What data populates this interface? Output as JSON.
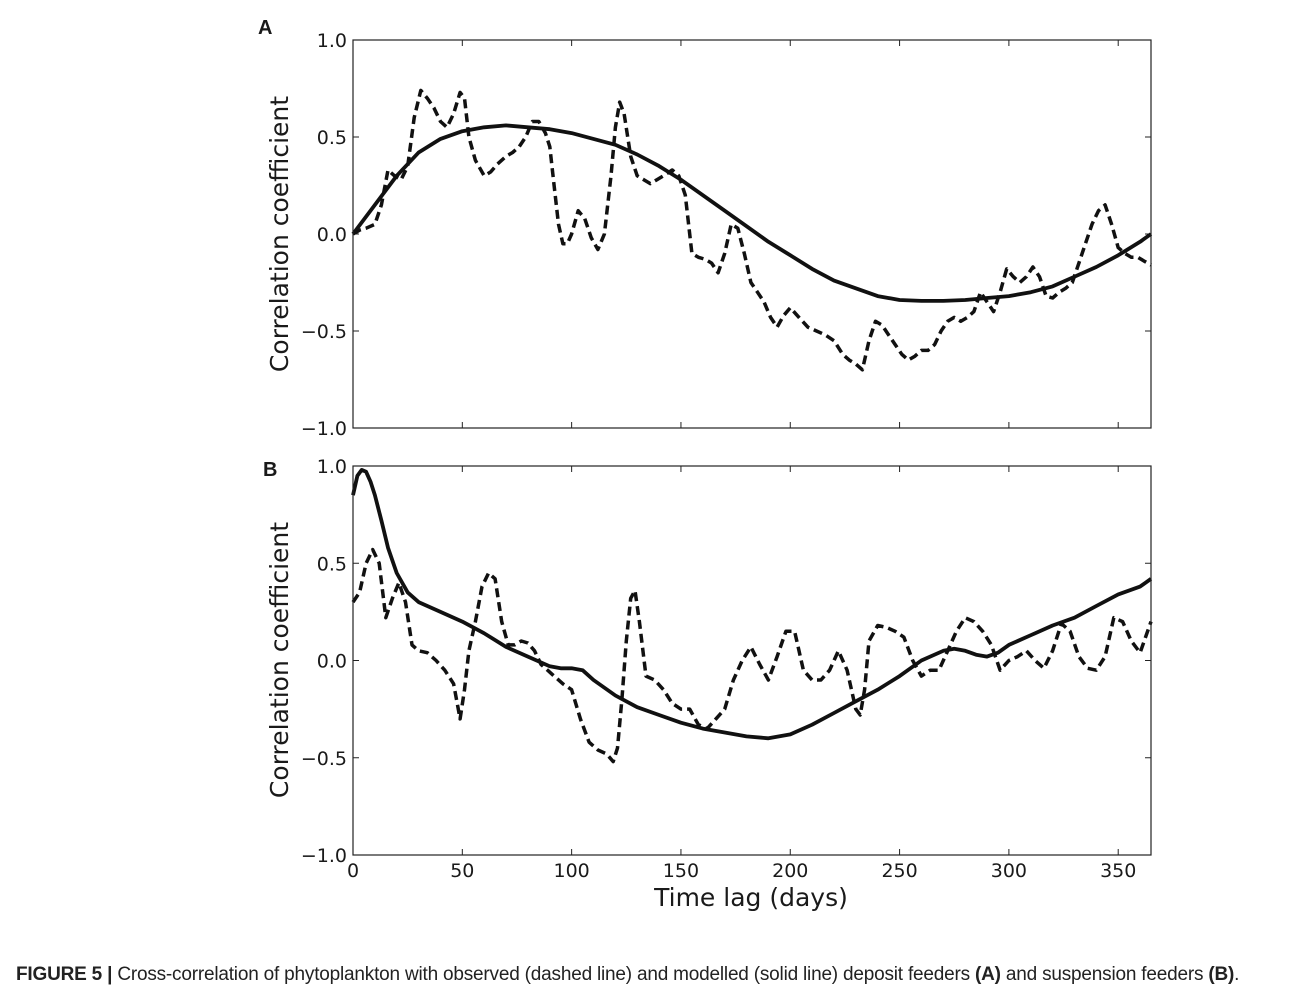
{
  "chart_data": [
    {
      "type": "line",
      "panel_label": "A",
      "ylabel": "Correlation coefficient",
      "xlabel": "",
      "xlim": [
        0,
        365
      ],
      "ylim": [
        -1.0,
        1.0
      ],
      "x_ticks": [
        0,
        50,
        100,
        150,
        200,
        250,
        300,
        350
      ],
      "y_ticks": [
        1.0,
        0.5,
        0.0,
        -0.5,
        -1.0
      ],
      "y_tick_labels": [
        "1.0",
        "0.5",
        "0.0",
        "−0.5",
        "−1.0"
      ],
      "show_x_tick_labels": false,
      "grid": false,
      "series": [
        {
          "style": "dashed",
          "x": [
            0,
            3,
            6,
            10,
            13,
            16,
            19,
            22,
            25,
            28,
            31,
            34,
            37,
            40,
            43,
            46,
            49,
            51,
            53,
            56,
            60,
            63,
            66,
            70,
            73,
            76,
            79,
            82,
            85,
            88,
            90,
            92,
            94,
            96,
            98,
            100,
            103,
            106,
            109,
            112,
            115,
            118,
            120,
            122,
            124,
            127,
            130,
            133,
            136,
            139,
            142,
            146,
            149,
            152,
            155,
            158,
            161,
            164,
            167,
            170,
            173,
            176,
            179,
            182,
            185,
            188,
            191,
            194,
            197,
            200,
            204,
            208,
            212,
            216,
            220,
            224,
            227,
            230,
            233,
            236,
            239,
            242,
            245,
            248,
            251,
            254,
            257,
            260,
            263,
            266,
            269,
            272,
            275,
            278,
            281,
            284,
            287,
            290,
            293,
            296,
            299,
            302,
            305,
            308,
            311,
            314,
            317,
            320,
            323,
            326,
            329,
            332,
            335,
            338,
            341,
            344,
            347,
            350,
            353,
            356,
            359,
            362,
            365
          ],
          "y": [
            0.0,
            0.02,
            0.03,
            0.05,
            0.15,
            0.33,
            0.3,
            0.28,
            0.35,
            0.6,
            0.74,
            0.7,
            0.65,
            0.58,
            0.55,
            0.62,
            0.73,
            0.7,
            0.5,
            0.38,
            0.3,
            0.32,
            0.36,
            0.4,
            0.42,
            0.45,
            0.5,
            0.58,
            0.58,
            0.52,
            0.45,
            0.25,
            0.05,
            -0.05,
            -0.05,
            0.0,
            0.12,
            0.08,
            -0.02,
            -0.08,
            0.0,
            0.3,
            0.55,
            0.68,
            0.62,
            0.4,
            0.3,
            0.28,
            0.26,
            0.28,
            0.3,
            0.33,
            0.3,
            0.2,
            -0.1,
            -0.12,
            -0.13,
            -0.15,
            -0.2,
            -0.1,
            0.05,
            0.03,
            -0.1,
            -0.25,
            -0.3,
            -0.35,
            -0.43,
            -0.48,
            -0.42,
            -0.38,
            -0.43,
            -0.48,
            -0.5,
            -0.52,
            -0.55,
            -0.62,
            -0.65,
            -0.67,
            -0.7,
            -0.55,
            -0.45,
            -0.47,
            -0.52,
            -0.57,
            -0.62,
            -0.65,
            -0.63,
            -0.6,
            -0.6,
            -0.57,
            -0.5,
            -0.45,
            -0.43,
            -0.45,
            -0.43,
            -0.4,
            -0.3,
            -0.35,
            -0.4,
            -0.3,
            -0.18,
            -0.22,
            -0.25,
            -0.22,
            -0.17,
            -0.22,
            -0.32,
            -0.33,
            -0.3,
            -0.28,
            -0.25,
            -0.15,
            -0.05,
            0.05,
            0.12,
            0.15,
            0.05,
            -0.07,
            -0.1,
            -0.12,
            -0.12,
            -0.14,
            -0.16
          ]
        },
        {
          "style": "solid",
          "x": [
            0,
            10,
            20,
            30,
            40,
            50,
            60,
            70,
            80,
            90,
            100,
            110,
            120,
            130,
            140,
            150,
            160,
            170,
            180,
            190,
            200,
            210,
            220,
            230,
            240,
            250,
            260,
            270,
            280,
            290,
            300,
            310,
            320,
            330,
            340,
            350,
            360,
            365
          ],
          "y": [
            0.0,
            0.15,
            0.3,
            0.42,
            0.49,
            0.53,
            0.55,
            0.56,
            0.55,
            0.54,
            0.52,
            0.49,
            0.46,
            0.41,
            0.35,
            0.28,
            0.2,
            0.12,
            0.04,
            -0.04,
            -0.11,
            -0.18,
            -0.24,
            -0.28,
            -0.32,
            -0.34,
            -0.345,
            -0.345,
            -0.34,
            -0.33,
            -0.32,
            -0.3,
            -0.27,
            -0.22,
            -0.17,
            -0.11,
            -0.04,
            0.0
          ]
        }
      ]
    },
    {
      "type": "line",
      "panel_label": "B",
      "ylabel": "Correlation coefficient",
      "xlabel": "Time lag (days)",
      "xlim": [
        0,
        365
      ],
      "ylim": [
        -1.0,
        1.0
      ],
      "x_ticks": [
        0,
        50,
        100,
        150,
        200,
        250,
        300,
        350
      ],
      "x_tick_labels": [
        "0",
        "50",
        "100",
        "150",
        "200",
        "250",
        "300",
        "350"
      ],
      "y_ticks": [
        1.0,
        0.5,
        0.0,
        -0.5,
        -1.0
      ],
      "y_tick_labels": [
        "1.0",
        "0.5",
        "0.0",
        "−0.5",
        "−1.0"
      ],
      "show_x_tick_labels": true,
      "grid": false,
      "series": [
        {
          "style": "dashed",
          "x": [
            0,
            3,
            6,
            9,
            12,
            15,
            18,
            21,
            24,
            27,
            30,
            34,
            38,
            42,
            46,
            49,
            51,
            53,
            56,
            59,
            62,
            65,
            68,
            71,
            74,
            77,
            80,
            83,
            86,
            89,
            92,
            96,
            100,
            104,
            108,
            112,
            116,
            119,
            121,
            123,
            125,
            127,
            129,
            131,
            134,
            138,
            142,
            146,
            150,
            154,
            158,
            162,
            166,
            170,
            174,
            178,
            182,
            186,
            190,
            194,
            198,
            202,
            206,
            210,
            214,
            218,
            222,
            226,
            230,
            232,
            234,
            236,
            240,
            244,
            248,
            252,
            256,
            260,
            264,
            268,
            272,
            276,
            280,
            284,
            288,
            292,
            296,
            300,
            304,
            308,
            312,
            316,
            320,
            324,
            328,
            332,
            336,
            340,
            344,
            348,
            352,
            356,
            360,
            365
          ],
          "y": [
            0.3,
            0.35,
            0.5,
            0.57,
            0.5,
            0.22,
            0.32,
            0.4,
            0.3,
            0.08,
            0.05,
            0.04,
            0.0,
            -0.05,
            -0.12,
            -0.3,
            -0.15,
            0.05,
            0.2,
            0.38,
            0.45,
            0.42,
            0.2,
            0.08,
            0.08,
            0.1,
            0.09,
            0.05,
            -0.02,
            -0.05,
            -0.08,
            -0.12,
            -0.15,
            -0.3,
            -0.42,
            -0.46,
            -0.48,
            -0.52,
            -0.45,
            -0.2,
            0.1,
            0.32,
            0.36,
            0.2,
            -0.08,
            -0.1,
            -0.15,
            -0.22,
            -0.25,
            -0.25,
            -0.33,
            -0.35,
            -0.3,
            -0.25,
            -0.1,
            0.0,
            0.07,
            -0.02,
            -0.1,
            0.02,
            0.15,
            0.15,
            -0.05,
            -0.1,
            -0.1,
            -0.05,
            0.05,
            -0.05,
            -0.25,
            -0.28,
            -0.15,
            0.1,
            0.18,
            0.17,
            0.15,
            0.12,
            0.0,
            -0.08,
            -0.05,
            -0.05,
            0.05,
            0.15,
            0.22,
            0.2,
            0.15,
            0.08,
            -0.05,
            0.0,
            0.02,
            0.05,
            0.0,
            -0.04,
            0.05,
            0.19,
            0.15,
            0.02,
            -0.04,
            -0.05,
            0.02,
            0.22,
            0.2,
            0.1,
            0.04,
            0.2
          ]
        },
        {
          "style": "solid",
          "x": [
            0,
            2,
            4,
            6,
            8,
            10,
            13,
            16,
            20,
            25,
            30,
            40,
            50,
            60,
            70,
            80,
            90,
            95,
            100,
            105,
            110,
            120,
            130,
            140,
            150,
            160,
            170,
            180,
            190,
            200,
            210,
            220,
            230,
            240,
            250,
            260,
            270,
            275,
            280,
            285,
            290,
            295,
            300,
            310,
            320,
            330,
            340,
            350,
            360,
            365
          ],
          "y": [
            0.85,
            0.95,
            0.98,
            0.97,
            0.92,
            0.85,
            0.72,
            0.58,
            0.45,
            0.35,
            0.3,
            0.25,
            0.2,
            0.14,
            0.07,
            0.02,
            -0.03,
            -0.04,
            -0.04,
            -0.05,
            -0.1,
            -0.18,
            -0.24,
            -0.28,
            -0.32,
            -0.35,
            -0.37,
            -0.39,
            -0.4,
            -0.38,
            -0.33,
            -0.27,
            -0.21,
            -0.15,
            -0.08,
            0.0,
            0.05,
            0.06,
            0.05,
            0.03,
            0.02,
            0.04,
            0.08,
            0.13,
            0.18,
            0.22,
            0.28,
            0.34,
            0.38,
            0.42
          ]
        }
      ]
    }
  ],
  "caption": {
    "figure_label": "FIGURE 5 |",
    "text_1": " Cross-correlation of phytoplankton with observed (dashed line) and modelled (solid line) deposit feeders ",
    "ref_a": "(A)",
    "text_2": " and suspension feeders ",
    "ref_b": "(B)",
    "text_3": "."
  }
}
